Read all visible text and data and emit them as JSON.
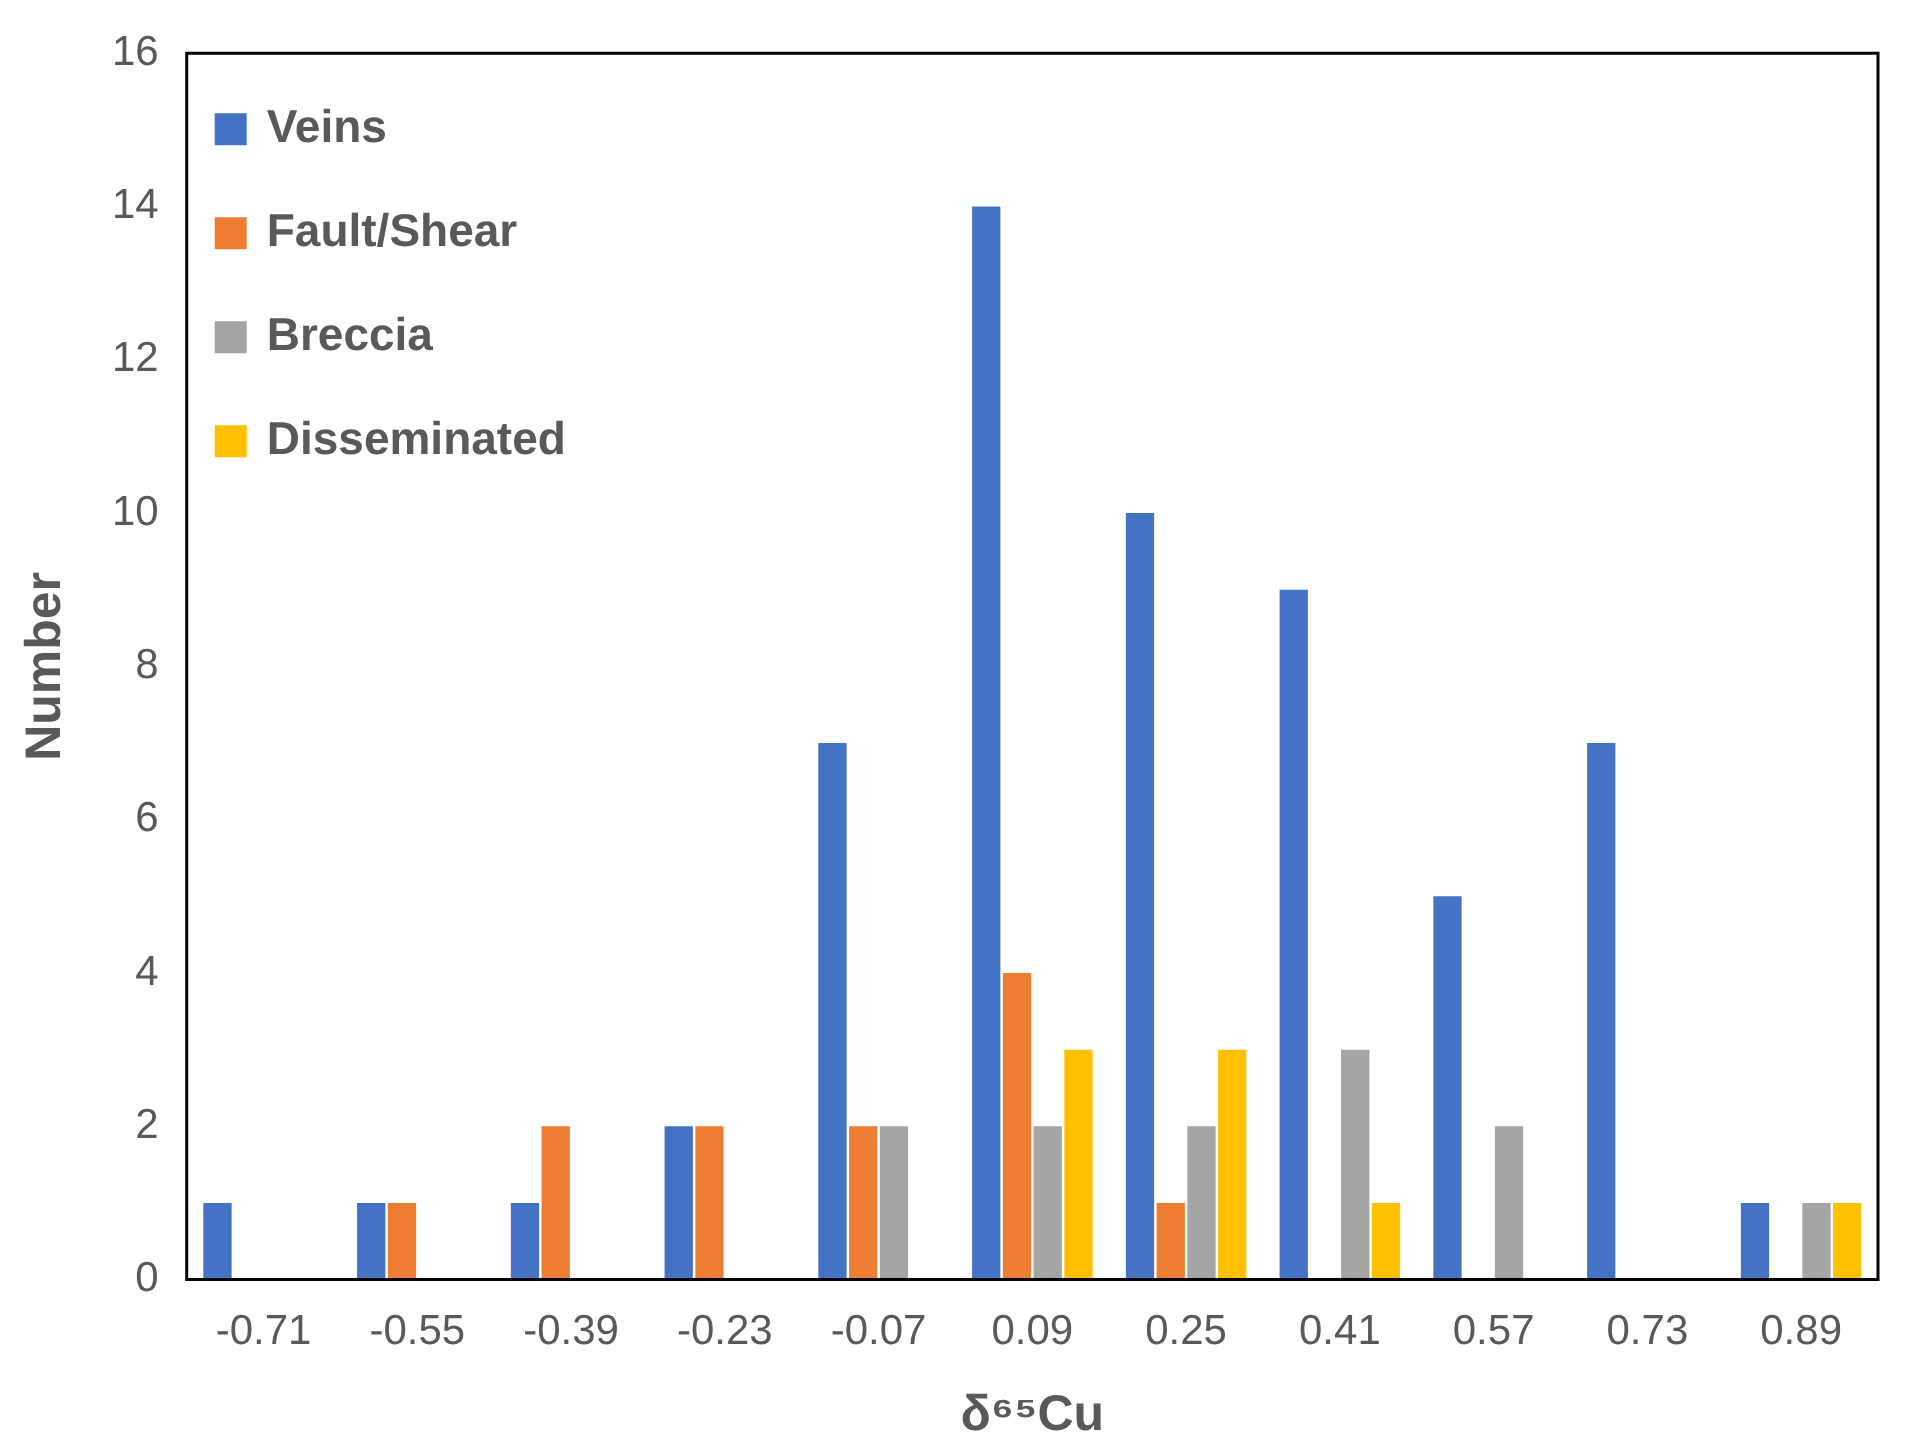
{
  "chart_data": {
    "type": "bar",
    "xlabel": "δ⁶⁵Cu",
    "ylabel": "Number",
    "categories": [
      "-0.71",
      "-0.55",
      "-0.39",
      "-0.23",
      "-0.07",
      "0.09",
      "0.25",
      "0.41",
      "0.57",
      "0.73",
      "0.89"
    ],
    "series": [
      {
        "name": "Veins",
        "color": "#4472c4",
        "values": [
          1,
          1,
          1,
          2,
          7,
          14,
          10,
          9,
          5,
          7,
          1
        ]
      },
      {
        "name": "Fault/Shear",
        "color": "#ed7d31",
        "values": [
          0,
          1,
          2,
          2,
          2,
          4,
          1,
          0,
          0,
          0,
          0
        ]
      },
      {
        "name": "Breccia",
        "color": "#a5a5a5",
        "values": [
          0,
          0,
          0,
          0,
          2,
          2,
          2,
          3,
          2,
          0,
          1
        ]
      },
      {
        "name": "Disseminated",
        "color": "#ffc000",
        "values": [
          0,
          0,
          0,
          0,
          0,
          3,
          3,
          1,
          0,
          0,
          1
        ]
      }
    ],
    "ylim": [
      0,
      16
    ],
    "yticks": [
      0,
      2,
      4,
      6,
      8,
      10,
      12,
      14,
      16
    ],
    "grid": false,
    "legend": "top left"
  }
}
